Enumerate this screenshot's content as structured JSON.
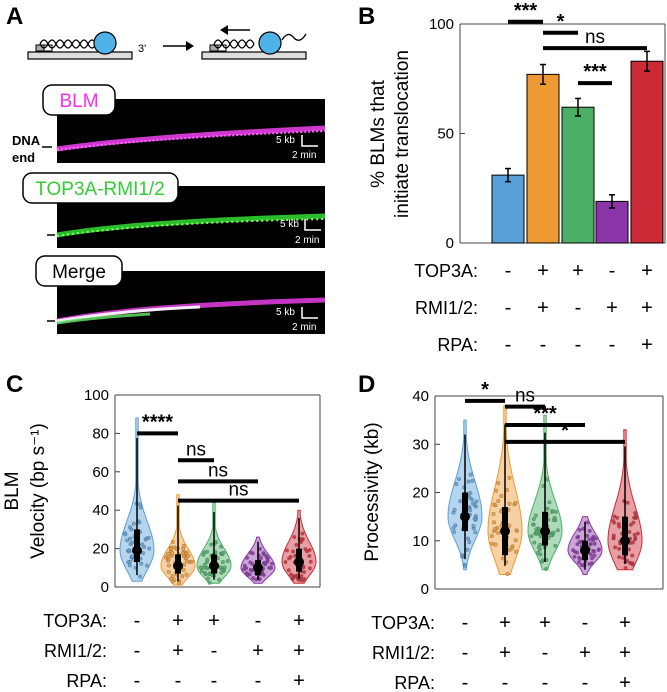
{
  "panel_letters": [
    "A",
    "B",
    "C",
    "D"
  ],
  "panel_a": {
    "dna_3prime": "3'",
    "dna_end_label_line1": "DNA",
    "dna_end_label_line2": "end",
    "kymographs": [
      {
        "label": "BLM",
        "label_color": "#ff2ee6",
        "scale_kb": "5 kb",
        "scale_min": "2 min"
      },
      {
        "label": "TOP3A-RMI1/2",
        "label_color": "#33dd33",
        "scale_kb": "5 kb",
        "scale_min": "2 min"
      },
      {
        "label": "Merge",
        "label_color": "#000000",
        "scale_kb": "5 kb",
        "scale_min": "2 min"
      }
    ]
  },
  "conditions": {
    "row_labels": [
      "TOP3A:",
      "RMI1/2:",
      "RPA:"
    ],
    "top3a": [
      "-",
      "+",
      "+",
      "-",
      "+"
    ],
    "rmi": [
      "-",
      "+",
      "-",
      "+",
      "+"
    ],
    "rpa": [
      "-",
      "-",
      "-",
      "-",
      "+"
    ]
  },
  "colors": {
    "blue": "#5aa0d8",
    "orange": "#ee9a33",
    "green": "#4caf67",
    "purple": "#8b35a8",
    "red": "#cc2a36"
  },
  "significance": {
    "b": [
      "***",
      "*",
      "ns",
      "***"
    ],
    "c": [
      "****",
      "ns",
      "ns",
      "ns"
    ],
    "d": [
      "*",
      "ns",
      "***",
      "*"
    ]
  },
  "chart_data": [
    {
      "panel": "B",
      "type": "bar",
      "ylabel_line1": "% BLMs that",
      "ylabel_line2": "initiate translocation",
      "ylim": [
        0,
        100
      ],
      "yticks": [
        0,
        50,
        100
      ],
      "values": [
        31,
        77,
        62,
        19,
        83
      ],
      "errors": [
        3,
        4.5,
        4,
        3,
        4.5
      ]
    },
    {
      "panel": "C",
      "type": "violin",
      "ylabel_line1": "BLM",
      "ylabel_line2": "Velocity (bp s⁻¹)",
      "ylim": [
        0,
        100
      ],
      "yticks": [
        0,
        20,
        40,
        60,
        80,
        100
      ],
      "medians": [
        19,
        11,
        11,
        10,
        13
      ],
      "q1": [
        13,
        7,
        7,
        6,
        8
      ],
      "q3": [
        30,
        17,
        17,
        14,
        20
      ],
      "mins": [
        3,
        1,
        2,
        2,
        2
      ],
      "maxs": [
        88,
        48,
        44,
        26,
        40
      ]
    },
    {
      "panel": "D",
      "type": "violin",
      "ylabel": "Processivity (kb)",
      "ylim": [
        0,
        40
      ],
      "yticks": [
        0,
        10,
        20,
        30,
        40
      ],
      "medians": [
        15,
        12,
        12,
        8,
        10
      ],
      "q1": [
        12,
        7,
        9,
        6,
        7
      ],
      "q3": [
        20,
        17,
        16,
        10,
        15
      ],
      "mins": [
        4,
        3,
        4,
        3,
        4
      ],
      "maxs": [
        35,
        38,
        36,
        15,
        33
      ]
    }
  ]
}
